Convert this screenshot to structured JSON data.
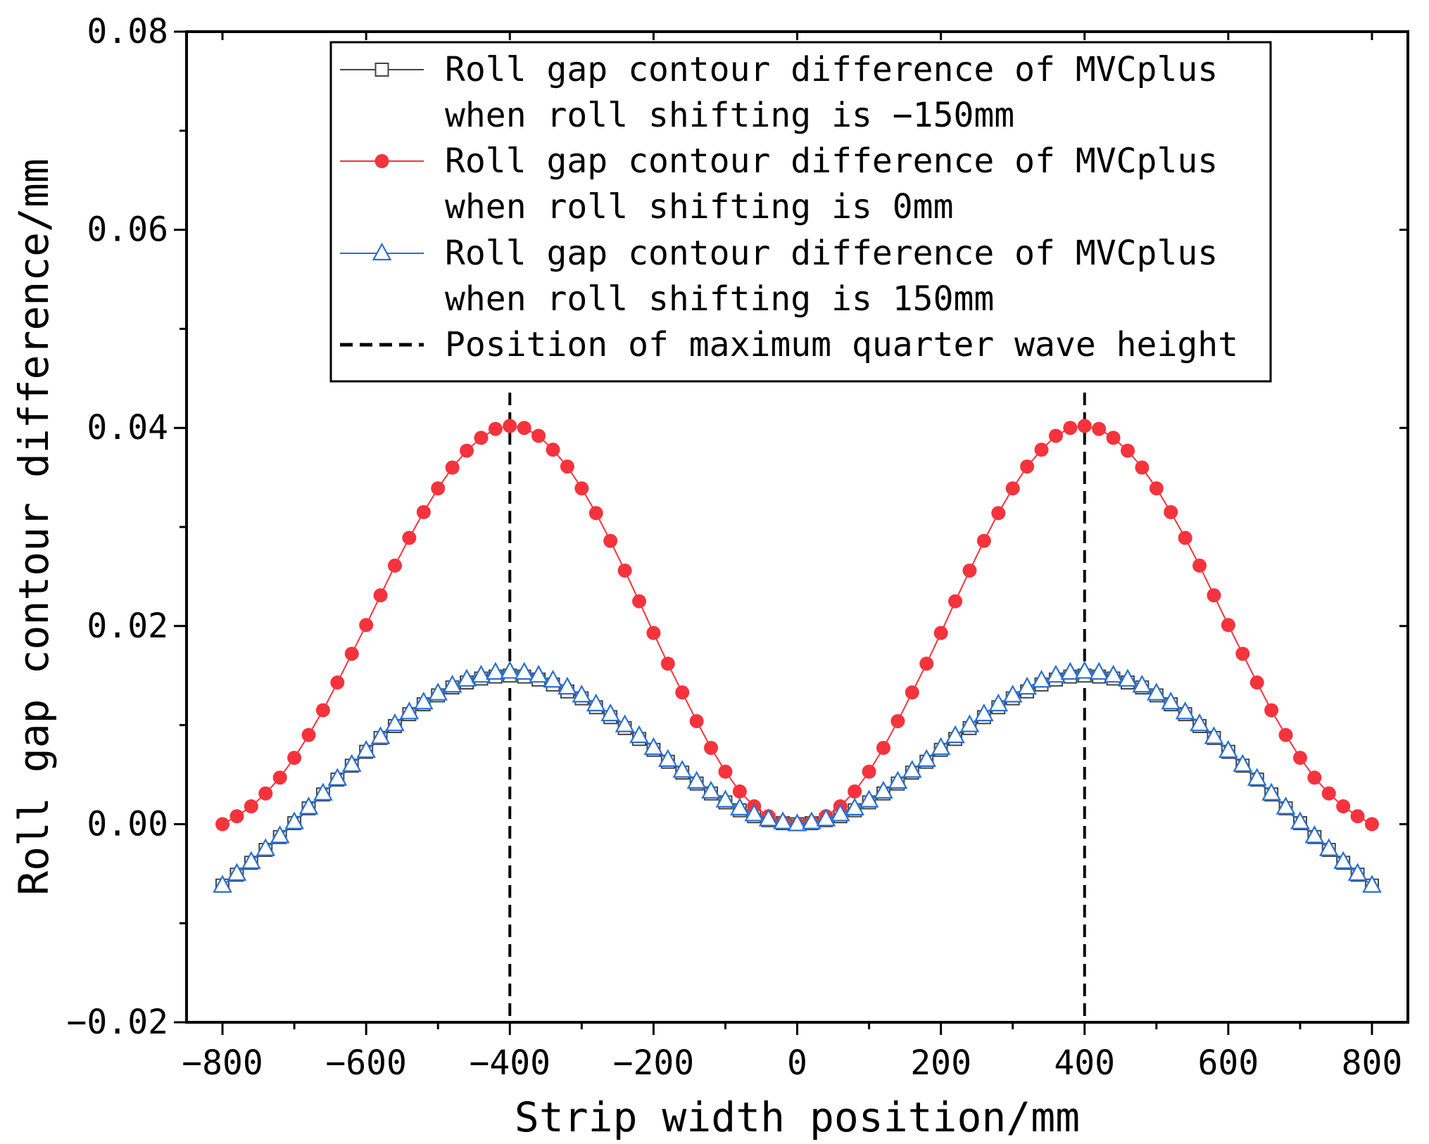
{
  "chart_data": {
    "type": "line",
    "title": "",
    "xlabel": "Strip width position/mm",
    "ylabel": "Roll gap contour difference/mm",
    "xlim": [
      -850,
      850
    ],
    "ylim": [
      -0.02,
      0.08
    ],
    "x_ticks": [
      -800,
      -600,
      -400,
      -200,
      0,
      200,
      400,
      600,
      800
    ],
    "x_tick_labels": [
      "−800",
      "−600",
      "−400",
      "−200",
      "0",
      "200",
      "400",
      "600",
      "800"
    ],
    "y_ticks": [
      -0.02,
      0.0,
      0.02,
      0.04,
      0.06,
      0.08
    ],
    "y_tick_labels": [
      "−0.02",
      "0.00",
      "0.02",
      "0.04",
      "0.06",
      "0.08"
    ],
    "grid": false,
    "legend_position": "top-right",
    "x": [
      -800,
      -780,
      -760,
      -740,
      -720,
      -700,
      -680,
      -660,
      -640,
      -620,
      -600,
      -580,
      -560,
      -540,
      -520,
      -500,
      -480,
      -460,
      -440,
      -420,
      -400,
      -380,
      -360,
      -340,
      -320,
      -300,
      -280,
      -260,
      -240,
      -220,
      -200,
      -180,
      -160,
      -140,
      -120,
      -100,
      -80,
      -60,
      -40,
      -20,
      0,
      20,
      40,
      60,
      80,
      100,
      120,
      140,
      160,
      180,
      200,
      220,
      240,
      260,
      280,
      300,
      320,
      340,
      360,
      380,
      400,
      420,
      440,
      460,
      480,
      500,
      520,
      540,
      560,
      580,
      600,
      620,
      640,
      660,
      680,
      700,
      720,
      740,
      760,
      780,
      800
    ],
    "series": [
      {
        "name_lines": [
          "Roll gap contour difference of MVCplus",
          "when roll shifting is −150mm"
        ],
        "color": "#444444",
        "marker": "square-open",
        "values": [
          -0.0062,
          -0.0051,
          -0.0039,
          -0.0026,
          -0.0013,
          0.0001,
          0.0016,
          0.003,
          0.0045,
          0.0059,
          0.0073,
          0.0087,
          0.0099,
          0.0111,
          0.0121,
          0.013,
          0.0138,
          0.0143,
          0.0147,
          0.0149,
          0.015,
          0.0149,
          0.0146,
          0.0141,
          0.0134,
          0.0127,
          0.0118,
          0.0108,
          0.0097,
          0.0086,
          0.0075,
          0.0063,
          0.0052,
          0.0041,
          0.0031,
          0.0022,
          0.0014,
          0.0008,
          0.0004,
          0.0001,
          0.0,
          0.0001,
          0.0004,
          0.0008,
          0.0014,
          0.0022,
          0.0031,
          0.0041,
          0.0052,
          0.0063,
          0.0075,
          0.0086,
          0.0097,
          0.0108,
          0.0118,
          0.0127,
          0.0134,
          0.0141,
          0.0146,
          0.0149,
          0.015,
          0.0149,
          0.0147,
          0.0143,
          0.0138,
          0.013,
          0.0121,
          0.0111,
          0.0099,
          0.0087,
          0.0073,
          0.0059,
          0.0045,
          0.003,
          0.0016,
          0.0001,
          -0.0013,
          -0.0026,
          -0.0039,
          -0.0051,
          -0.0062
        ]
      },
      {
        "name_lines": [
          "Roll gap contour difference of MVCplus",
          "when roll shifting is 0mm"
        ],
        "color": "#f5333d",
        "marker": "circle-filled",
        "values": [
          0.0,
          0.0008,
          0.0018,
          0.0031,
          0.0047,
          0.0067,
          0.009,
          0.0115,
          0.0143,
          0.0172,
          0.0201,
          0.0231,
          0.0261,
          0.0289,
          0.0315,
          0.0339,
          0.036,
          0.0377,
          0.039,
          0.0399,
          0.0402,
          0.04,
          0.0392,
          0.0378,
          0.0361,
          0.0339,
          0.0314,
          0.0286,
          0.0256,
          0.0225,
          0.0193,
          0.0162,
          0.0133,
          0.0104,
          0.0077,
          0.0053,
          0.0033,
          0.0018,
          0.0008,
          0.0002,
          0.0,
          0.0002,
          0.0008,
          0.0018,
          0.0033,
          0.0053,
          0.0077,
          0.0104,
          0.0133,
          0.0162,
          0.0193,
          0.0225,
          0.0256,
          0.0286,
          0.0314,
          0.0339,
          0.0361,
          0.0378,
          0.0392,
          0.04,
          0.0402,
          0.0399,
          0.039,
          0.0377,
          0.036,
          0.0339,
          0.0315,
          0.0289,
          0.0261,
          0.0231,
          0.0201,
          0.0172,
          0.0143,
          0.0115,
          0.009,
          0.0067,
          0.0047,
          0.0031,
          0.0018,
          0.0008,
          0.0
        ]
      },
      {
        "name_lines": [
          "Roll gap contour difference of MVCplus",
          "when roll shifting is 150mm"
        ],
        "color": "#2a6fd1",
        "marker": "triangle-open",
        "values": [
          -0.0062,
          -0.005,
          -0.0038,
          -0.0025,
          -0.0012,
          0.0002,
          0.0017,
          0.0031,
          0.0046,
          0.006,
          0.0074,
          0.0088,
          0.0101,
          0.0113,
          0.0123,
          0.0132,
          0.014,
          0.0146,
          0.015,
          0.0153,
          0.0154,
          0.0153,
          0.015,
          0.0145,
          0.0138,
          0.013,
          0.0121,
          0.0111,
          0.01,
          0.0089,
          0.0077,
          0.0065,
          0.0054,
          0.0043,
          0.0033,
          0.0024,
          0.0016,
          0.001,
          0.0005,
          0.0002,
          0.0,
          0.0002,
          0.0005,
          0.001,
          0.0016,
          0.0024,
          0.0033,
          0.0043,
          0.0054,
          0.0065,
          0.0077,
          0.0089,
          0.01,
          0.0111,
          0.0121,
          0.013,
          0.0138,
          0.0145,
          0.015,
          0.0153,
          0.0154,
          0.0153,
          0.015,
          0.0146,
          0.014,
          0.0132,
          0.0123,
          0.0113,
          0.0101,
          0.0088,
          0.0074,
          0.006,
          0.0046,
          0.0031,
          0.0017,
          0.0002,
          -0.0012,
          -0.0025,
          -0.0038,
          -0.005,
          -0.0062
        ]
      }
    ],
    "reference_lines": {
      "name": "Position of maximum quarter wave height",
      "color": "#000000",
      "style": "dashed",
      "x_positions": [
        -400,
        400
      ]
    }
  }
}
